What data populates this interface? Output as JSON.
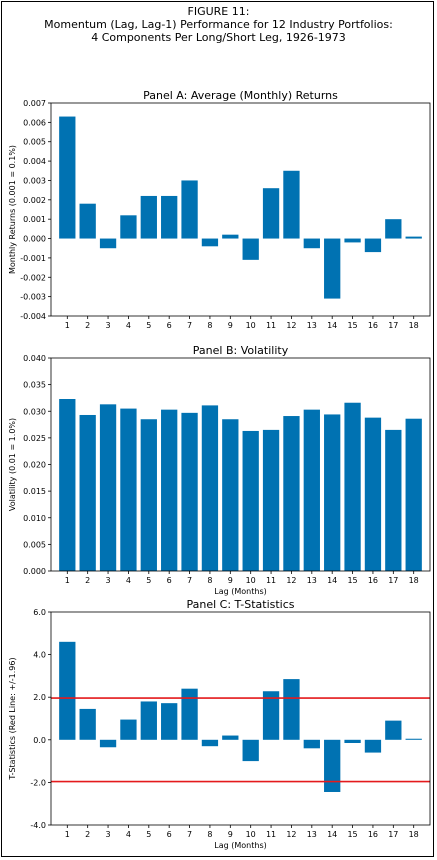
{
  "figure": {
    "title_lines": [
      "FIGURE 11:",
      "Momentum (Lag, Lag-1) Performance for 12 Industry Portfolios:",
      "4 Components Per Long/Short Leg, 1926-1973"
    ],
    "bar_color": "#0072B2",
    "threshold_color": "#E41A1C"
  },
  "chart_data": [
    {
      "type": "bar",
      "title": "Panel A: Average (Monthly) Returns",
      "xlabel": "",
      "ylabel": "Monthly Returns (0.001 = 0.1%)",
      "categories": [
        "1",
        "2",
        "3",
        "4",
        "5",
        "6",
        "7",
        "8",
        "9",
        "10",
        "11",
        "12",
        "13",
        "14",
        "15",
        "16",
        "17",
        "18"
      ],
      "values": [
        0.0063,
        0.0018,
        -0.0005,
        0.0012,
        0.0022,
        0.0022,
        0.003,
        -0.0004,
        0.0002,
        -0.0011,
        0.0026,
        0.0035,
        -0.0005,
        -0.0031,
        -0.0002,
        -0.0007,
        0.001,
        0.0001
      ],
      "ylim": [
        -0.004,
        0.007
      ],
      "yticks": [
        -0.004,
        -0.003,
        -0.002,
        -0.001,
        0,
        0.001,
        0.002,
        0.003,
        0.004,
        0.005,
        0.006,
        0.007
      ],
      "ytick_labels": [
        "-0.004",
        "-0.003",
        "-0.002",
        "-0.001",
        "0.000",
        "0.001",
        "0.002",
        "0.003",
        "0.004",
        "0.005",
        "0.006",
        "0.007"
      ],
      "grid": false,
      "hlines": []
    },
    {
      "type": "bar",
      "title": "Panel B: Volatility",
      "xlabel": "Lag (Months)",
      "ylabel": "Volatility (0.01 = 1.0%)",
      "categories": [
        "1",
        "2",
        "3",
        "4",
        "5",
        "6",
        "7",
        "8",
        "9",
        "10",
        "11",
        "12",
        "13",
        "14",
        "15",
        "16",
        "17",
        "18"
      ],
      "values": [
        0.0323,
        0.0293,
        0.0313,
        0.0305,
        0.0285,
        0.0303,
        0.0297,
        0.0311,
        0.0285,
        0.0263,
        0.0265,
        0.0291,
        0.0303,
        0.0294,
        0.0316,
        0.0288,
        0.0265,
        0.0286
      ],
      "ylim": [
        0,
        0.04
      ],
      "yticks": [
        0,
        0.005,
        0.01,
        0.015,
        0.02,
        0.025,
        0.03,
        0.035,
        0.04
      ],
      "ytick_labels": [
        "0.000",
        "0.005",
        "0.010",
        "0.015",
        "0.020",
        "0.025",
        "0.030",
        "0.035",
        "0.040"
      ],
      "grid": false,
      "hlines": []
    },
    {
      "type": "bar",
      "title": "Panel C: T-Statistics",
      "xlabel": "Lag (Months)",
      "ylabel": "T-Statistics (Red Line: +/-1.96)",
      "categories": [
        "1",
        "2",
        "3",
        "4",
        "5",
        "6",
        "7",
        "8",
        "9",
        "10",
        "11",
        "12",
        "13",
        "14",
        "15",
        "16",
        "17",
        "18"
      ],
      "values": [
        4.6,
        1.45,
        -0.35,
        0.95,
        1.8,
        1.72,
        2.4,
        -0.3,
        0.2,
        -1.0,
        2.28,
        2.85,
        -0.4,
        -2.45,
        -0.15,
        -0.6,
        0.9,
        0.05
      ],
      "ylim": [
        -4,
        6
      ],
      "yticks": [
        -4,
        -2,
        0,
        2,
        4,
        6
      ],
      "ytick_labels": [
        "-4.0",
        "-2.0",
        "0.0",
        "2.0",
        "4.0",
        "6.0"
      ],
      "grid": false,
      "hlines": [
        1.96,
        -1.96
      ]
    }
  ]
}
